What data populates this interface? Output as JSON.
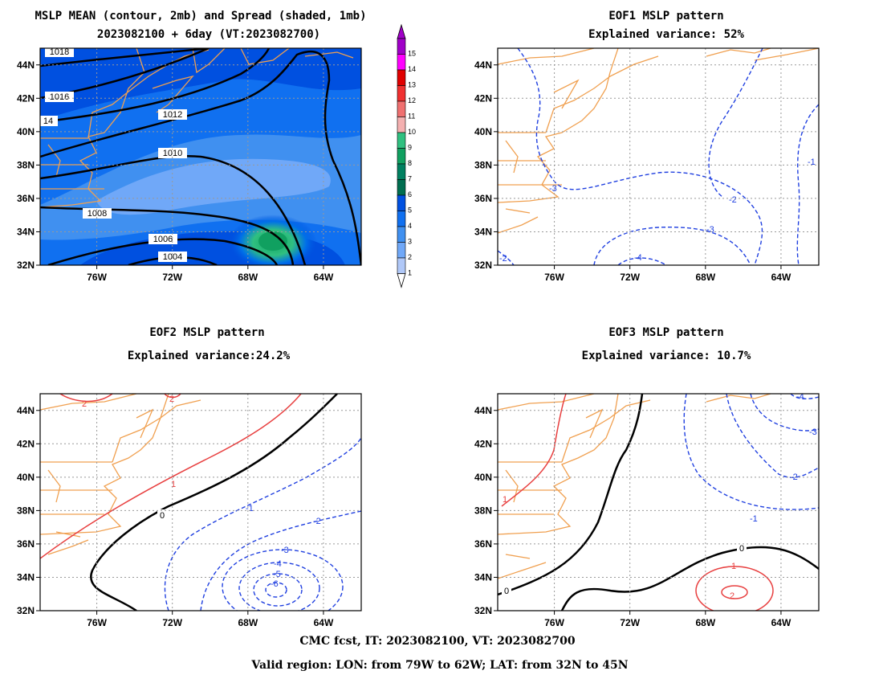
{
  "footer": {
    "line1": "CMC fcst, IT: 2023082100, VT: 2023082700",
    "line2": "Valid region: LON: from 79W to 62W; LAT: from 32N to 45N"
  },
  "chart_data": [
    {
      "type": "contour-map",
      "title": "MSLP MEAN (contour, 2mb) and Spread (shaded, 1mb)",
      "subtitle": "2023082100 + 6day (VT:2023082700)",
      "xlim": [
        -79,
        -62
      ],
      "ylim": [
        32,
        45
      ],
      "x_ticks": [
        "76W",
        "72W",
        "68W",
        "64W"
      ],
      "y_ticks": [
        "44N",
        "42N",
        "40N",
        "38N",
        "36N",
        "34N",
        "32N"
      ],
      "contour_labels": [
        "1018",
        "1016",
        "14",
        "1012",
        "1010",
        "1008",
        "1006",
        "1004"
      ],
      "colorbar": {
        "labels": [
          "15",
          "14",
          "13",
          "12",
          "11",
          "10",
          "9",
          "8",
          "7",
          "6",
          "5",
          "4",
          "3",
          "2",
          "1"
        ],
        "colors": [
          "#a000c8",
          "#ff00ff",
          "#e00000",
          "#f03030",
          "#f07070",
          "#f4b0b0",
          "#30c080",
          "#10a060",
          "#008060",
          "#006e50",
          "#0050e0",
          "#1070f0",
          "#4090f0",
          "#70a8f8",
          "#b0c8f8"
        ]
      },
      "grid": true
    },
    {
      "type": "contour-map",
      "title": "EOF1 MSLP pattern",
      "subtitle": "Explained variance: 52%",
      "xlim": [
        -79,
        -62
      ],
      "ylim": [
        32,
        45
      ],
      "x_ticks": [
        "76W",
        "72W",
        "68W",
        "64W"
      ],
      "y_ticks": [
        "44N",
        "42N",
        "40N",
        "38N",
        "36N",
        "34N",
        "32N"
      ],
      "contour_labels": [
        "-1",
        "-2",
        "-3",
        "-2",
        "-3",
        "-4",
        "-2"
      ],
      "grid": true
    },
    {
      "type": "contour-map",
      "title": "EOF2 MSLP pattern",
      "subtitle": "Explained variance:24.2%",
      "xlim": [
        -79,
        -62
      ],
      "ylim": [
        32,
        45
      ],
      "x_ticks": [
        "76W",
        "72W",
        "68W",
        "64W"
      ],
      "y_ticks": [
        "44N",
        "42N",
        "40N",
        "38N",
        "36N",
        "34N",
        "32N"
      ],
      "contour_labels": [
        "2",
        "2",
        "1",
        "0",
        "-1",
        "-2",
        "-3",
        "-4",
        "-5",
        "-6"
      ],
      "grid": true
    },
    {
      "type": "contour-map",
      "title": "EOF3 MSLP pattern",
      "subtitle": "Explained variance: 10.7%",
      "xlim": [
        -79,
        -62
      ],
      "ylim": [
        32,
        45
      ],
      "x_ticks": [
        "76W",
        "72W",
        "68W",
        "64W"
      ],
      "y_ticks": [
        "44N",
        "42N",
        "40N",
        "38N",
        "36N",
        "34N",
        "32N"
      ],
      "contour_labels": [
        "-4",
        "-3",
        "-2",
        "-1",
        "1",
        "0",
        "0",
        "1",
        "2"
      ],
      "grid": true
    }
  ]
}
